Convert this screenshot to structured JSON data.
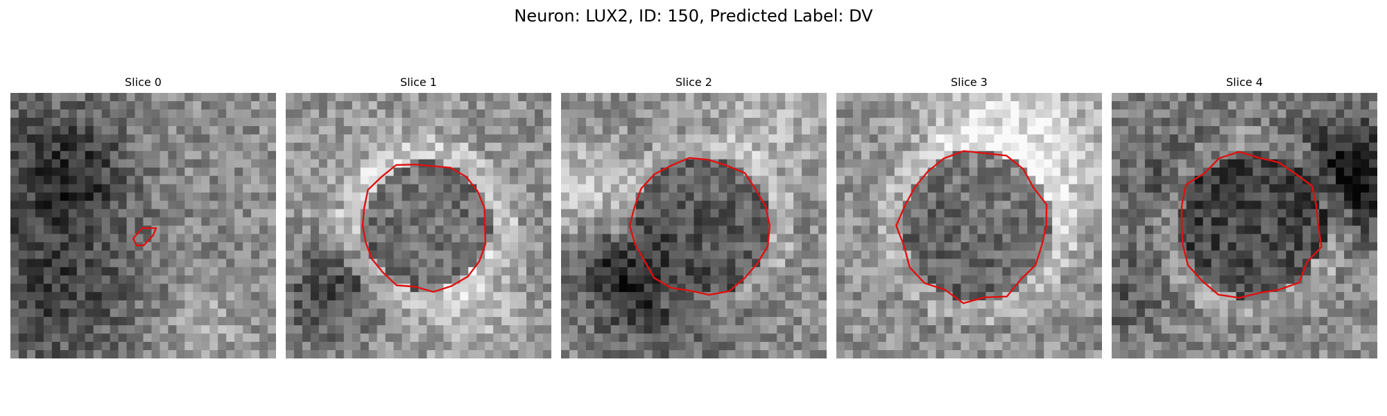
{
  "figure": {
    "title": "Neuron: LUX2, ID: 150, Predicted Label: DV"
  },
  "outline_color": "#e01010",
  "panels": [
    {
      "title": "Slice 0",
      "seed": 11,
      "center_level": 0.52,
      "ring_radius": 0.0
    },
    {
      "title": "Slice 1",
      "seed": 23,
      "center_level": 0.3,
      "ring_radius": 0.24
    },
    {
      "title": "Slice 2",
      "seed": 37,
      "center_level": 0.28,
      "ring_radius": 0.26
    },
    {
      "title": "Slice 3",
      "seed": 51,
      "center_level": 0.32,
      "ring_radius": 0.28
    },
    {
      "title": "Slice 4",
      "seed": 67,
      "center_level": 0.18,
      "ring_radius": 0.27
    }
  ]
}
